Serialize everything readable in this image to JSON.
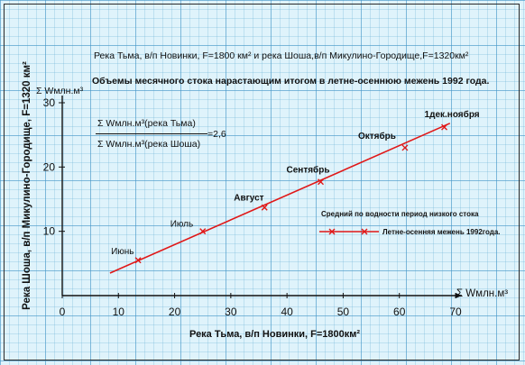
{
  "title_line1": "Река Тьма, в/п Новинки, F=1800 км² и река Шоша,в/п Микулино-Городище,F=1320км²",
  "title_line2": "Объемы месячного стока нарастающим итогом в летне-осеннюю межень  1992 года.",
  "ratio": {
    "numerator": "Σ Wмлн.м³(река Тьма)",
    "denominator": "Σ Wмлн.м³(река Шоша)",
    "value": "=2,6"
  },
  "legend": {
    "title": "Средний  по водности период  низкого стока",
    "series_label": "Летне-осенняя межень 1992года."
  },
  "colors": {
    "line": "#e01818",
    "axis": "#111111"
  },
  "chart_data": {
    "type": "line",
    "xlabel": "Река Тьма, в/п Новинки, F=1800км²",
    "ylabel": "Река Шоша, в/п Микулино-Городище, F=1320 км²",
    "x_unit": "Σ Wмлн.м³",
    "y_unit": "Σ Wмлн.м³",
    "xlim": [
      0,
      70
    ],
    "ylim": [
      0,
      30
    ],
    "x_ticks": [
      0,
      10,
      20,
      30,
      40,
      50,
      60,
      70
    ],
    "y_ticks": [
      10,
      20,
      30
    ],
    "grid": true,
    "series": [
      {
        "name": "Летне-осенняя межень 1992года.",
        "points": [
          {
            "label": "Июнь",
            "x": 13.5,
            "y": 5.5
          },
          {
            "label": "Июль",
            "x": 25,
            "y": 10
          },
          {
            "label": "Август",
            "x": 36,
            "y": 13.7
          },
          {
            "label": "Сентябрь",
            "x": 46,
            "y": 17.7
          },
          {
            "label": "Октябрь",
            "x": 61,
            "y": 23
          },
          {
            "label": "1дек.ноября",
            "x": 68,
            "y": 26.2
          }
        ]
      }
    ],
    "fit_line": {
      "x": [
        8.5,
        69
      ],
      "y": [
        3.5,
        26.8
      ]
    }
  }
}
